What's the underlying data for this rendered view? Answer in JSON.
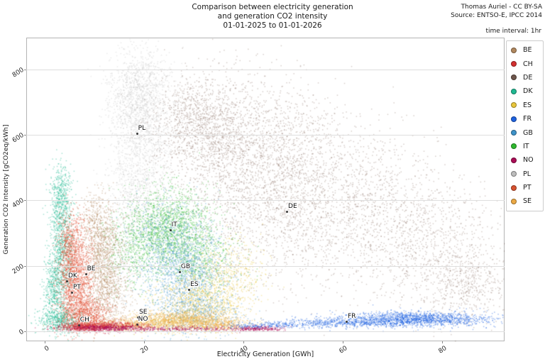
{
  "header": {
    "title_lines": [
      "Comparison between electricity generation",
      "and generation CO2 intensity",
      "01-01-2025 to 01-01-2026"
    ],
    "credit_lines": [
      "Thomas Auriel - CC BY-SA",
      "Source: ENTSO-E, IPCC 2014"
    ]
  },
  "legend": {
    "title": "time interval: 1hr",
    "items": [
      {
        "code": "BE",
        "color": "#b1885e"
      },
      {
        "code": "CH",
        "color": "#d32f2f"
      },
      {
        "code": "DE",
        "color": "#6e564c"
      },
      {
        "code": "DK",
        "color": "#1fb992"
      },
      {
        "code": "ES",
        "color": "#e9c63b"
      },
      {
        "code": "FR",
        "color": "#1e62e0"
      },
      {
        "code": "GB",
        "color": "#3e93c9"
      },
      {
        "code": "IT",
        "color": "#2eb82e"
      },
      {
        "code": "NO",
        "color": "#ab0d56"
      },
      {
        "code": "PL",
        "color": "#bdbdbd"
      },
      {
        "code": "PT",
        "color": "#d75230"
      },
      {
        "code": "SE",
        "color": "#eca944"
      }
    ]
  },
  "chart_data": {
    "type": "scatter",
    "title": "Comparison between electricity generation and generation CO2 intensity 01-01-2025 to 01-01-2026",
    "xlabel": "Electricity Generation [GWh]",
    "ylabel": "Generation CO2 Intensity [gCO2eq/kWh]",
    "x_ticks": [
      0,
      20,
      40,
      60,
      80
    ],
    "y_ticks": [
      0,
      200,
      400,
      600,
      800
    ],
    "xlim": [
      -3.7,
      92.6
    ],
    "ylim": [
      -30,
      897
    ],
    "grid": "horizontal",
    "legend_position": "right",
    "units": {
      "x": "GWh",
      "y": "gCO2eq/kWh"
    },
    "series": [
      {
        "name": "DE",
        "color": "#7a5c50",
        "alpha": 0.3,
        "label_at": [
          48.6,
          368
        ],
        "approx_range": {
          "x": [
            24,
            92
          ],
          "y": [
            60,
            730
          ]
        },
        "blobs": [
          [
            34,
            600,
            5.7,
            95,
            1400
          ],
          [
            47,
            510,
            7,
            120,
            1500
          ],
          [
            62,
            385,
            8.5,
            120,
            1200
          ],
          [
            77,
            275,
            7,
            100,
            800
          ],
          [
            85,
            150,
            4.5,
            60,
            500
          ],
          [
            41,
            300,
            8,
            110,
            600
          ],
          [
            30,
            665,
            4,
            50,
            400
          ]
        ]
      },
      {
        "name": "PL",
        "color": "#bdbdbd",
        "alpha": 0.32,
        "label_at": [
          18.4,
          607
        ],
        "approx_range": {
          "x": [
            11,
            28
          ],
          "y": [
            120,
            870
          ]
        },
        "blobs": [
          [
            19,
            730,
            3.2,
            75,
            1200
          ],
          [
            19.5,
            560,
            3.4,
            80,
            800
          ],
          [
            18,
            400,
            2.7,
            60,
            400
          ],
          [
            15.5,
            210,
            2.2,
            70,
            250
          ]
        ]
      },
      {
        "name": "IT",
        "color": "#2eb82e",
        "alpha": 0.38,
        "label_at": [
          25.1,
          312
        ],
        "approx_range": {
          "x": [
            12,
            40
          ],
          "y": [
            70,
            450
          ]
        },
        "blobs": [
          [
            25,
            320,
            4.5,
            60,
            1600
          ],
          [
            18,
            250,
            3,
            60,
            400
          ],
          [
            31,
            220,
            4,
            50,
            500
          ]
        ]
      },
      {
        "name": "GB",
        "color": "#3e93c9",
        "alpha": 0.38,
        "label_at": [
          27.0,
          184
        ],
        "approx_range": {
          "x": [
            15,
            42
          ],
          "y": [
            10,
            370
          ]
        },
        "blobs": [
          [
            28,
            170,
            4.3,
            80,
            1500
          ],
          [
            24,
            300,
            3.6,
            55,
            400
          ],
          [
            31,
            60,
            4.3,
            30,
            500
          ]
        ]
      },
      {
        "name": "ES",
        "color": "#e9c63b",
        "alpha": 0.4,
        "label_at": [
          28.9,
          130
        ],
        "approx_range": {
          "x": [
            10,
            43
          ],
          "y": [
            5,
            300
          ]
        },
        "blobs": [
          [
            31,
            90,
            4.5,
            45,
            900
          ],
          [
            37,
            180,
            3.5,
            60,
            400
          ],
          [
            25,
            30,
            6,
            14,
            500
          ]
        ]
      },
      {
        "name": "BE",
        "color": "#b1885e",
        "alpha": 0.4,
        "label_at": [
          8.1,
          178
        ],
        "approx_range": {
          "x": [
            5,
            16
          ],
          "y": [
            10,
            390
          ]
        },
        "blobs": [
          [
            11.5,
            255,
            2.0,
            70,
            900
          ],
          [
            12.5,
            120,
            2.3,
            55,
            600
          ],
          [
            10,
            360,
            1.5,
            35,
            150
          ]
        ]
      },
      {
        "name": "DK",
        "color": "#1fb992",
        "alpha": 0.4,
        "label_at": [
          4.3,
          156
        ],
        "approx_range": {
          "x": [
            0,
            7
          ],
          "y": [
            0,
            480
          ]
        },
        "blobs": [
          [
            3.2,
            250,
            1.3,
            110,
            1100
          ],
          [
            3.0,
            420,
            1.0,
            45,
            300
          ],
          [
            3,
            35,
            2.2,
            20,
            500
          ],
          [
            1.5,
            120,
            1.0,
            50,
            300
          ]
        ]
      },
      {
        "name": "PT",
        "color": "#e0492e",
        "alpha": 0.42,
        "label_at": [
          5.3,
          121
        ],
        "approx_range": {
          "x": [
            1,
            12
          ],
          "y": [
            0,
            300
          ]
        },
        "blobs": [
          [
            6,
            170,
            1.8,
            70,
            1500
          ],
          [
            5,
            285,
            1.2,
            45,
            350
          ],
          [
            8,
            55,
            2.3,
            25,
            700
          ]
        ]
      },
      {
        "name": "SE",
        "color": "#eca944",
        "alpha": 0.42,
        "label_at": [
          18.6,
          45
        ],
        "approx_range": {
          "x": [
            9,
            41
          ],
          "y": [
            5,
            75
          ]
        },
        "blobs": [
          [
            27,
            38,
            5.5,
            13,
            900
          ],
          [
            16,
            18,
            4,
            8,
            400
          ],
          [
            35,
            20,
            3,
            8,
            300
          ]
        ]
      },
      {
        "name": "CH",
        "color": "#d32f2f",
        "alpha": 0.42,
        "label_at": [
          6.7,
          22
        ],
        "approx_range": {
          "x": [
            2,
            15
          ],
          "y": [
            2,
            40
          ]
        },
        "blobs": [
          [
            8,
            17,
            2.8,
            7,
            600
          ],
          [
            14,
            22,
            3,
            6,
            250
          ]
        ]
      },
      {
        "name": "NO",
        "color": "#ab0d56",
        "alpha": 0.42,
        "label_at": [
          18.4,
          24
        ],
        "approx_range": {
          "x": [
            3,
            48
          ],
          "y": [
            2,
            32
          ]
        },
        "blobs": [
          [
            12,
            13,
            4,
            5,
            500
          ],
          [
            27,
            10,
            7,
            4,
            300
          ],
          [
            43,
            11,
            2.5,
            4,
            250
          ]
        ]
      },
      {
        "name": "FR",
        "color": "#1e62e0",
        "alpha": 0.42,
        "label_at": [
          60.6,
          32
        ],
        "approx_range": {
          "x": [
            37,
            91
          ],
          "y": [
            8,
            80
          ]
        },
        "blobs": [
          [
            75,
            40,
            8,
            11,
            1500
          ],
          [
            60,
            28,
            7,
            7,
            500
          ],
          [
            48,
            22,
            5,
            5,
            150
          ],
          [
            41,
            18,
            3,
            4,
            80
          ]
        ]
      }
    ]
  }
}
